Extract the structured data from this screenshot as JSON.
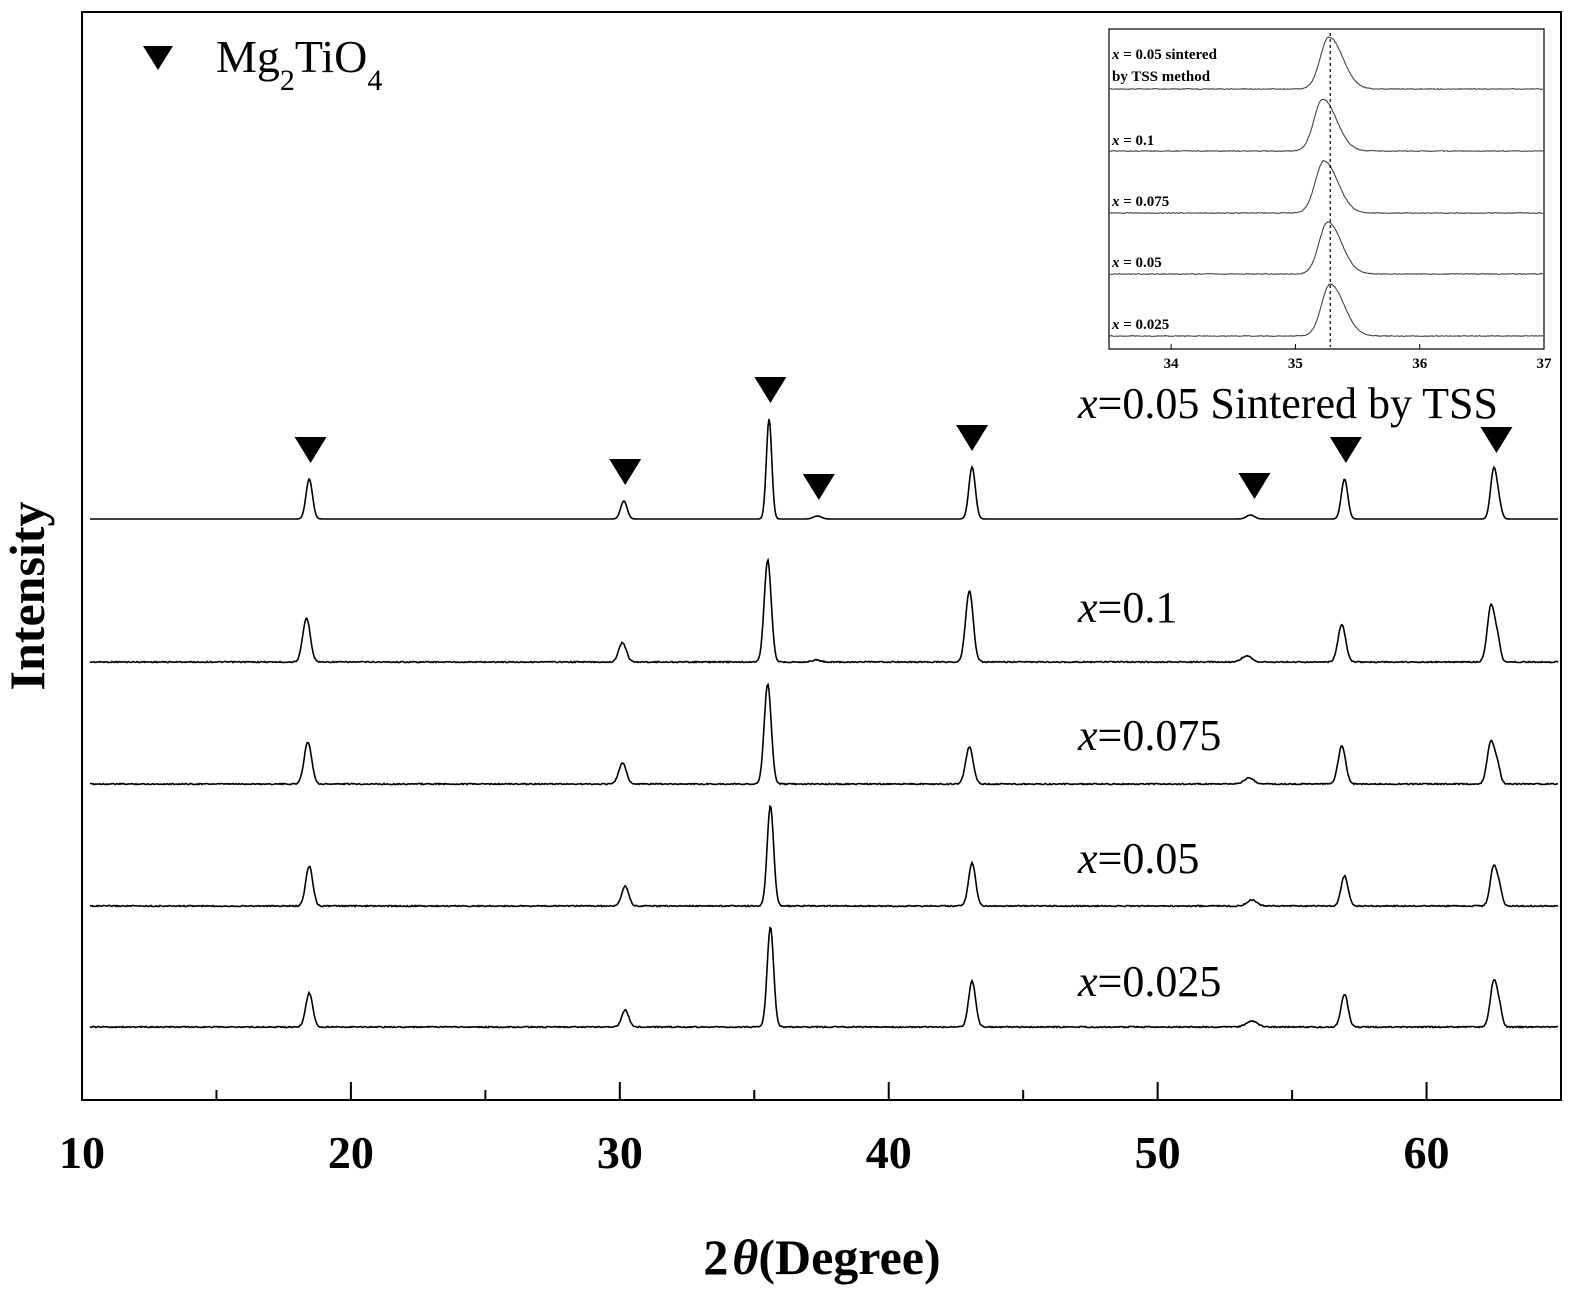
{
  "chart_data": {
    "type": "line",
    "title": "",
    "xlabel_prefix": "2",
    "xlabel_symbol": "θ",
    "xlabel_suffix": "(Degree)",
    "ylabel": "Intensity",
    "xlim": [
      10,
      65
    ],
    "major_ticks": [
      10,
      20,
      30,
      40,
      50,
      60
    ],
    "minor_ticks": [
      15,
      25,
      35,
      45,
      55
    ],
    "y_ticks_shown": false,
    "legend": {
      "position": "top-left",
      "marker": "down-triangle",
      "text_main1": "Mg",
      "text_sub1": "2",
      "text_main2": "TiO",
      "text_sub2": "4"
    },
    "peak_positions": [
      18.5,
      30.2,
      35.6,
      37.4,
      43.1,
      53.6,
      57.0,
      62.6
    ],
    "series": [
      {
        "name_var": "x",
        "name_rest": "=0.05 Sintered by TSS",
        "peaks": [
          {
            "x": 18.45,
            "h": 0.4,
            "w": 0.12
          },
          {
            "x": 30.15,
            "h": 0.18,
            "w": 0.12
          },
          {
            "x": 35.55,
            "h": 1.0,
            "w": 0.1
          },
          {
            "x": 37.35,
            "h": 0.03,
            "w": 0.15
          },
          {
            "x": 43.1,
            "h": 0.52,
            "w": 0.12
          },
          {
            "x": 53.45,
            "h": 0.04,
            "w": 0.15
          },
          {
            "x": 56.95,
            "h": 0.4,
            "w": 0.12
          },
          {
            "x": 62.5,
            "h": 0.5,
            "w": 0.12
          },
          {
            "x": 62.7,
            "h": 0.12,
            "w": 0.1
          }
        ]
      },
      {
        "name_var": "x",
        "name_rest": "=0.1",
        "peaks": [
          {
            "x": 18.35,
            "h": 0.43,
            "w": 0.14
          },
          {
            "x": 30.1,
            "h": 0.19,
            "w": 0.14
          },
          {
            "x": 35.5,
            "h": 1.0,
            "w": 0.13
          },
          {
            "x": 37.3,
            "h": 0.02,
            "w": 0.15
          },
          {
            "x": 43.0,
            "h": 0.7,
            "w": 0.14
          },
          {
            "x": 53.3,
            "h": 0.06,
            "w": 0.18
          },
          {
            "x": 56.85,
            "h": 0.37,
            "w": 0.14
          },
          {
            "x": 62.4,
            "h": 0.56,
            "w": 0.14
          },
          {
            "x": 62.65,
            "h": 0.18,
            "w": 0.1
          }
        ]
      },
      {
        "name_var": "x",
        "name_rest": "=0.075",
        "peaks": [
          {
            "x": 18.4,
            "h": 0.42,
            "w": 0.14
          },
          {
            "x": 30.1,
            "h": 0.21,
            "w": 0.14
          },
          {
            "x": 35.5,
            "h": 1.0,
            "w": 0.13
          },
          {
            "x": 43.0,
            "h": 0.37,
            "w": 0.14
          },
          {
            "x": 53.4,
            "h": 0.06,
            "w": 0.18
          },
          {
            "x": 56.85,
            "h": 0.38,
            "w": 0.14
          },
          {
            "x": 62.4,
            "h": 0.43,
            "w": 0.14
          },
          {
            "x": 62.65,
            "h": 0.15,
            "w": 0.1
          }
        ]
      },
      {
        "name_var": "x",
        "name_rest": "=0.05",
        "peaks": [
          {
            "x": 18.45,
            "h": 0.4,
            "w": 0.13
          },
          {
            "x": 30.2,
            "h": 0.2,
            "w": 0.13
          },
          {
            "x": 35.6,
            "h": 1.0,
            "w": 0.12
          },
          {
            "x": 43.1,
            "h": 0.43,
            "w": 0.13
          },
          {
            "x": 53.5,
            "h": 0.06,
            "w": 0.18
          },
          {
            "x": 56.95,
            "h": 0.3,
            "w": 0.13
          },
          {
            "x": 62.5,
            "h": 0.4,
            "w": 0.13
          },
          {
            "x": 62.72,
            "h": 0.14,
            "w": 0.1
          }
        ]
      },
      {
        "name_var": "x",
        "name_rest": "=0.025",
        "peaks": [
          {
            "x": 18.45,
            "h": 0.34,
            "w": 0.13
          },
          {
            "x": 30.2,
            "h": 0.17,
            "w": 0.13
          },
          {
            "x": 35.6,
            "h": 1.0,
            "w": 0.12
          },
          {
            "x": 43.1,
            "h": 0.46,
            "w": 0.13
          },
          {
            "x": 53.5,
            "h": 0.06,
            "w": 0.2
          },
          {
            "x": 56.95,
            "h": 0.33,
            "w": 0.13
          },
          {
            "x": 62.5,
            "h": 0.46,
            "w": 0.13
          },
          {
            "x": 62.72,
            "h": 0.15,
            "w": 0.1
          }
        ]
      }
    ],
    "inset": {
      "type": "line",
      "xlim": [
        33.5,
        37
      ],
      "ticks": [
        34,
        35,
        36,
        37
      ],
      "reference_line_x": 35.28,
      "series": [
        {
          "label_var": "x",
          "label_rest": " = 0.05 sintered",
          "label_line2": "by TSS method",
          "peak_x": 35.27,
          "height": 1.0
        },
        {
          "label_var": "x",
          "label_rest": " = 0.1",
          "label_line2": "",
          "peak_x": 35.22,
          "height": 1.0
        },
        {
          "label_var": "x",
          "label_rest": " = 0.075",
          "label_line2": "",
          "peak_x": 35.23,
          "height": 1.0
        },
        {
          "label_var": "x",
          "label_rest": " = 0.05",
          "label_line2": "",
          "peak_x": 35.26,
          "height": 1.0
        },
        {
          "label_var": "x",
          "label_rest": " = 0.025",
          "label_line2": "",
          "peak_x": 35.28,
          "height": 1.0
        }
      ]
    }
  },
  "colors": {
    "line": "#000000",
    "background": "#ffffff",
    "inset_line": "#444444"
  }
}
